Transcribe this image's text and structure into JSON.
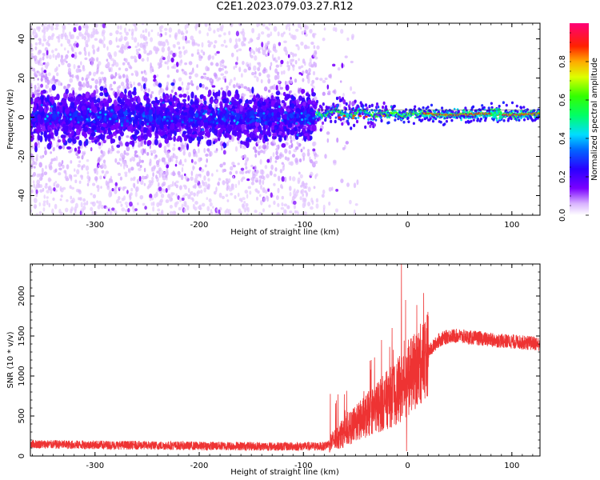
{
  "figure_title": "C2E1.2023.079.03.27.R12",
  "colors": {
    "snr_line": "#ee3333",
    "axis": "#000000",
    "background": "#ffffff"
  },
  "chart_data": [
    {
      "type": "heatmap",
      "name": "spectrogram",
      "title": "",
      "xlabel": "Height of straight line (km)",
      "ylabel": "Frequency (Hz)",
      "xlim": [
        -362,
        127
      ],
      "ylim": [
        -50,
        48
      ],
      "xticks": [
        -300,
        -200,
        -100,
        0,
        100
      ],
      "xtick_labels": [
        "-300",
        "-200",
        "-100",
        "0",
        "100"
      ],
      "yticks": [
        -40,
        -20,
        0,
        20,
        40
      ],
      "ytick_labels": [
        "-40",
        "-20",
        "0",
        "20",
        "40"
      ],
      "colorbar": {
        "label": "Normalized spectral amplitude",
        "range": [
          0.0,
          1.0
        ],
        "ticks": [
          0.0,
          0.2,
          0.4,
          0.6,
          0.8
        ],
        "tick_labels": [
          "0.0",
          "0.2",
          "0.4",
          "0.6",
          "0.8"
        ],
        "colormap": "rainbow (white → violet → blue → cyan → green → yellow → red → magenta)"
      },
      "description_of_structure": [
        {
          "segment": "noise",
          "x_range": [
            -362,
            -88
          ],
          "core_band_hz": [
            -12,
            10
          ],
          "scatter_hz": [
            -50,
            48
          ]
        },
        {
          "segment": "transition",
          "x_range": [
            -88,
            -20
          ],
          "center_hz": 2,
          "core_band_hz": [
            -3,
            4
          ]
        },
        {
          "segment": "signal",
          "x_range": [
            -20,
            127
          ],
          "center_hz": 1.5,
          "core_band_hz": [
            -2,
            3
          ],
          "peak_amplitude": 1.0
        }
      ]
    },
    {
      "type": "line",
      "name": "snr",
      "title": "",
      "xlabel": "Height of straight line (km)",
      "ylabel": "SNR (10 * v/v)",
      "xlim": [
        -362,
        127
      ],
      "ylim": [
        0,
        2400
      ],
      "xticks": [
        -300,
        -200,
        -100,
        0,
        100
      ],
      "xtick_labels": [
        "-300",
        "-200",
        "-100",
        "0",
        "100"
      ],
      "yticks": [
        0,
        500,
        1000,
        1500,
        2000
      ],
      "ytick_labels": [
        "0",
        "500",
        "1000",
        "1500",
        "2000"
      ],
      "series": [
        {
          "name": "SNR",
          "x": [
            -362,
            -340,
            -320,
            -300,
            -280,
            -260,
            -240,
            -220,
            -200,
            -180,
            -160,
            -140,
            -120,
            -100,
            -80,
            -70,
            -60,
            -50,
            -40,
            -30,
            -20,
            -10,
            0,
            10,
            20,
            30,
            40,
            50,
            60,
            70,
            80,
            90,
            100,
            110,
            120,
            127
          ],
          "values": [
            150,
            145,
            140,
            140,
            135,
            135,
            130,
            130,
            125,
            125,
            125,
            120,
            120,
            120,
            120,
            200,
            300,
            400,
            500,
            600,
            700,
            800,
            950,
            1100,
            1300,
            1450,
            1500,
            1500,
            1480,
            1470,
            1450,
            1440,
            1430,
            1420,
            1410,
            1400
          ],
          "spikes": [
            {
              "x": -6,
              "value": 2400
            },
            {
              "x": -15,
              "value": 1600
            },
            {
              "x": -2,
              "value": 1950
            },
            {
              "x": -25,
              "value": 1450
            },
            {
              "x": -35,
              "value": 1200
            },
            {
              "x": -1,
              "value": 60
            }
          ]
        }
      ]
    }
  ]
}
